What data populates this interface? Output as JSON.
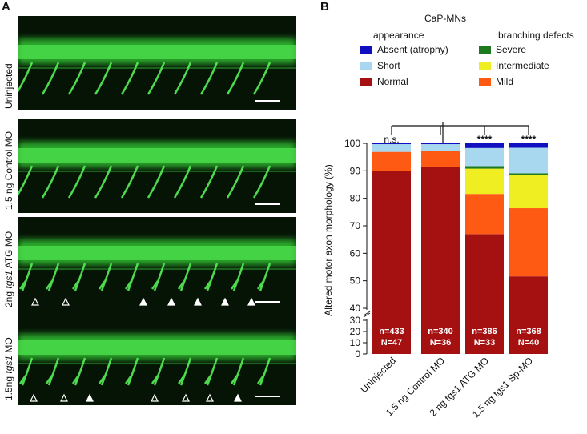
{
  "panel_a": {
    "letter": "A",
    "rows": [
      {
        "label": "Uninjected",
        "arrows": []
      },
      {
        "label": "1.5 ng Control MO",
        "arrows": []
      },
      {
        "label_prefix": "2ng ",
        "label_italic": "tgs1",
        "label_suffix": " ATG MO",
        "arrows": [
          "open",
          "open",
          "filled",
          "filled",
          "filled",
          "filled",
          "filled"
        ]
      },
      {
        "label_prefix": "1.5ng ",
        "label_italic": "tgs1",
        "label_suffix": " MO",
        "arrows": [
          "open",
          "open",
          "filled",
          "open",
          "open",
          "open",
          "filled"
        ]
      }
    ]
  },
  "panel_b": {
    "letter": "B",
    "legend": {
      "title": "CaP-MNs",
      "group1_title": "appearance",
      "group2_title": "branching defects",
      "items": [
        {
          "label": "Absent (atrophy)",
          "color": "#1010c0"
        },
        {
          "label": "Short",
          "color": "#a8d8f0"
        },
        {
          "label": "Normal",
          "color": "#a51010"
        },
        {
          "label": "Severe",
          "color": "#1e7a1e"
        },
        {
          "label": "Intermediate",
          "color": "#eeee22"
        },
        {
          "label": "Mild",
          "color": "#ff5a14"
        }
      ]
    }
  },
  "chart_data": {
    "type": "bar",
    "stacked": true,
    "categories": [
      "Uninjected",
      "1.5 ng Control MO",
      "2 ng tgs1 ATG MO",
      "1.5 ng tgs1 Sp-MO"
    ],
    "ylabel": "Altered motor axon morphology (%)",
    "ylim": [
      0,
      100
    ],
    "y_axis_break": [
      30,
      40
    ],
    "yticks": [
      0,
      10,
      20,
      30,
      40,
      50,
      60,
      70,
      80,
      90,
      100
    ],
    "series": [
      {
        "name": "Normal",
        "color": "#a51010",
        "values": [
          90,
          91.3,
          67,
          51.6
        ]
      },
      {
        "name": "Mild",
        "color": "#ff5a14",
        "values": [
          6.9,
          6.0,
          14.6,
          24.8
        ]
      },
      {
        "name": "Intermediate",
        "color": "#eeee22",
        "values": [
          0,
          0,
          9.2,
          12.0
        ]
      },
      {
        "name": "Severe",
        "color": "#1e7a1e",
        "values": [
          0,
          0,
          0.9,
          0.7
        ]
      },
      {
        "name": "Short",
        "color": "#a8d8f0",
        "values": [
          2.8,
          2.4,
          6.6,
          9.3
        ]
      },
      {
        "name": "Absent (atrophy)",
        "color": "#1010c0",
        "values": [
          0.3,
          0.3,
          1.7,
          1.6
        ]
      }
    ],
    "bar_labels": [
      [
        "n=433",
        "N=47"
      ],
      [
        "n=340",
        "N=36"
      ],
      [
        "n=386",
        "N=33"
      ],
      [
        "n=368",
        "N=40"
      ]
    ],
    "significance": [
      "n.s.",
      "",
      "****",
      "****"
    ]
  }
}
